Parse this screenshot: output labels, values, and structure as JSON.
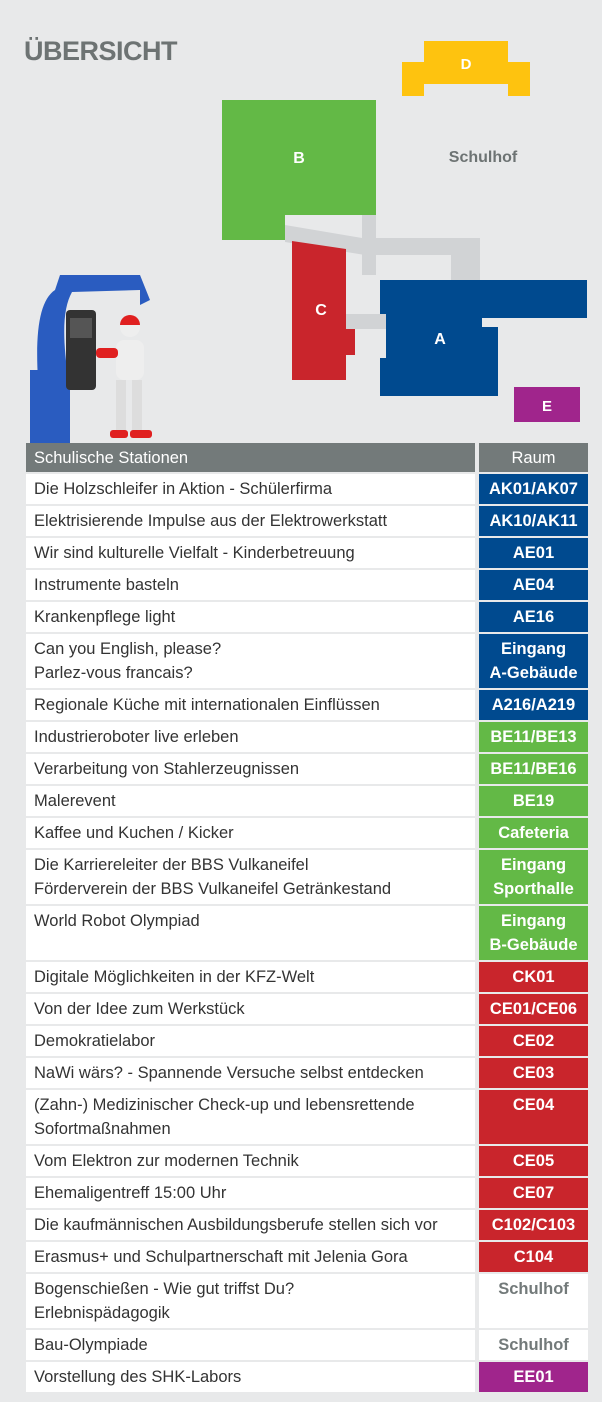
{
  "title": "ÜBERSICHT",
  "map": {
    "buildings": [
      {
        "label": "A",
        "color": "#004a8f"
      },
      {
        "label": "B",
        "color": "#63b946"
      },
      {
        "label": "C",
        "color": "#c9252c"
      },
      {
        "label": "D",
        "color": "#fec30f"
      },
      {
        "label": "E",
        "color": "#a0258c"
      }
    ],
    "yard_label": "Schulhof"
  },
  "table": {
    "headers": {
      "station": "Schulische Stationen",
      "room": "Raum"
    },
    "rows": [
      {
        "station": [
          "Die Holzschleifer in Aktion - Schülerfirma"
        ],
        "room": [
          "AK01/AK07"
        ],
        "color": "#004a8f"
      },
      {
        "station": [
          "Elektrisierende Impulse aus der Elektrowerkstatt"
        ],
        "room": [
          "AK10/AK11"
        ],
        "color": "#004a8f"
      },
      {
        "station": [
          "Wir sind kulturelle Vielfalt - Kinderbetreuung"
        ],
        "room": [
          "AE01"
        ],
        "color": "#004a8f"
      },
      {
        "station": [
          "Instrumente basteln"
        ],
        "room": [
          "AE04"
        ],
        "color": "#004a8f"
      },
      {
        "station": [
          "Krankenpflege light"
        ],
        "room": [
          "AE16"
        ],
        "color": "#004a8f"
      },
      {
        "station": [
          "Can you English, please?",
          "Parlez-vous francais?"
        ],
        "room": [
          "Eingang",
          "A-Gebäude"
        ],
        "color": "#004a8f"
      },
      {
        "station": [
          "Regionale Küche mit internationalen Einflüssen"
        ],
        "room": [
          "A216/A219"
        ],
        "color": "#004a8f"
      },
      {
        "station": [
          "Industrieroboter live erleben"
        ],
        "room": [
          "BE11/BE13"
        ],
        "color": "#63b946"
      },
      {
        "station": [
          "Verarbeitung von Stahlerzeugnissen"
        ],
        "room": [
          "BE11/BE16"
        ],
        "color": "#63b946"
      },
      {
        "station": [
          "Malerevent"
        ],
        "room": [
          "BE19"
        ],
        "color": "#63b946"
      },
      {
        "station": [
          "Kaffee und Kuchen / Kicker"
        ],
        "room": [
          "Cafeteria"
        ],
        "color": "#63b946"
      },
      {
        "station": [
          "Die Karriereleiter der BBS Vulkaneifel",
          "Förderverein der BBS Vulkaneifel Getränkestand"
        ],
        "room": [
          "Eingang",
          "Sporthalle"
        ],
        "color": "#63b946"
      },
      {
        "station": [
          "World Robot Olympiad",
          ""
        ],
        "room": [
          "Eingang",
          "B-Gebäude"
        ],
        "color": "#63b946"
      },
      {
        "station": [
          "Digitale Möglichkeiten in der KFZ-Welt"
        ],
        "room": [
          "CK01"
        ],
        "color": "#c9252c"
      },
      {
        "station": [
          "Von der Idee zum Werkstück"
        ],
        "room": [
          "CE01/CE06"
        ],
        "color": "#c9252c"
      },
      {
        "station": [
          "Demokratielabor"
        ],
        "room": [
          "CE02"
        ],
        "color": "#c9252c"
      },
      {
        "station": [
          "NaWi wärs? - Spannende Versuche selbst entdecken"
        ],
        "room": [
          "CE03"
        ],
        "color": "#c9252c"
      },
      {
        "station": [
          "(Zahn-) Medizinischer Check-up und lebensrettende",
          "Sofortmaßnahmen"
        ],
        "room": [
          "CE04"
        ],
        "color": "#c9252c"
      },
      {
        "station": [
          "Vom Elektron zur modernen Technik"
        ],
        "room": [
          "CE05"
        ],
        "color": "#c9252c"
      },
      {
        "station": [
          "Ehemaligentreff 15:00 Uhr"
        ],
        "room": [
          "CE07"
        ],
        "color": "#c9252c"
      },
      {
        "station": [
          "Die kaufmännischen Ausbildungsberufe stellen sich vor"
        ],
        "room": [
          "C102/C103"
        ],
        "color": "#c9252c"
      },
      {
        "station": [
          "Erasmus+ und Schulpartnerschaft mit Jelenia Gora"
        ],
        "room": [
          "C104"
        ],
        "color": "#c9252c"
      },
      {
        "station": [
          "Bogenschießen - Wie gut triffst Du?",
          "Erlebnispädagogik"
        ],
        "room": [
          "Schulhof"
        ],
        "color": "#ffffff",
        "text_color": "#737a7a"
      },
      {
        "station": [
          "Bau-Olympiade"
        ],
        "room": [
          "Schulhof"
        ],
        "color": "#ffffff",
        "text_color": "#737a7a"
      },
      {
        "station": [
          "Vorstellung des SHK-Labors"
        ],
        "room": [
          "EE01"
        ],
        "color": "#a0258c"
      }
    ]
  }
}
